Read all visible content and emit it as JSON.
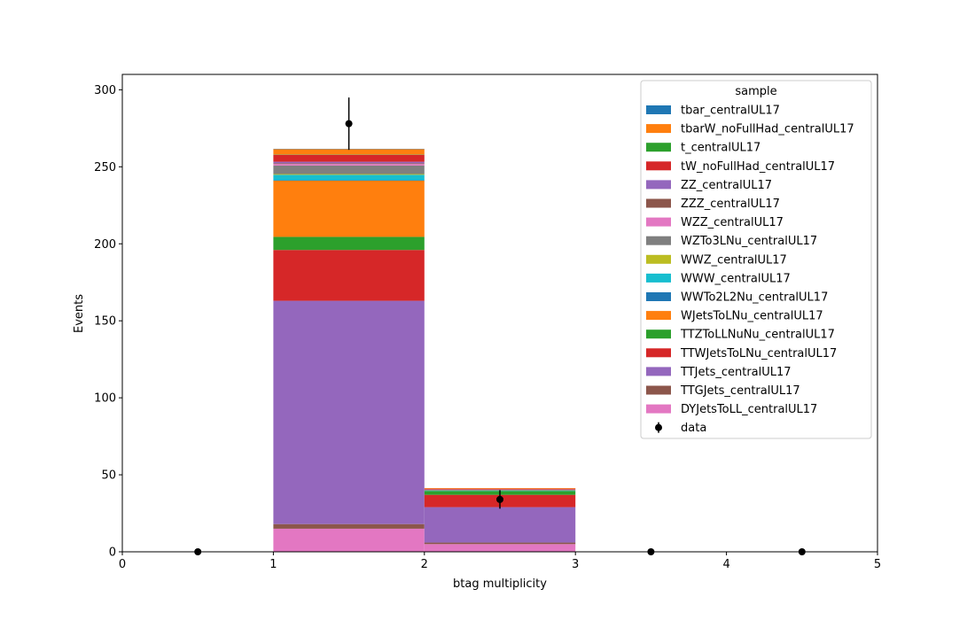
{
  "chart_data": {
    "type": "bar",
    "stacked": true,
    "histogram": true,
    "bin_edges": [
      0,
      1,
      2,
      3,
      4,
      5
    ],
    "xlabel": "btag multiplicity",
    "ylabel": "Events",
    "xlim": [
      0,
      5
    ],
    "ylim": [
      0,
      310
    ],
    "xticks": [
      0,
      1,
      2,
      3,
      4,
      5
    ],
    "yticks": [
      0,
      50,
      100,
      150,
      200,
      250,
      300
    ],
    "grid": false,
    "legend": {
      "title": "sample",
      "placement": "top-right"
    },
    "series": [
      {
        "name": "DYJetsToLL_centralUL17",
        "color": "#e377c2",
        "values": [
          0,
          15,
          5,
          0,
          0
        ]
      },
      {
        "name": "TTGJets_centralUL17",
        "color": "#8c564b",
        "values": [
          0,
          3,
          1,
          0,
          0
        ]
      },
      {
        "name": "TTJets_centralUL17",
        "color": "#9467bd",
        "values": [
          0,
          145,
          23,
          0,
          0
        ]
      },
      {
        "name": "TTWJetsToLNu_centralUL17",
        "color": "#d62728",
        "values": [
          0,
          33,
          8,
          0,
          0
        ]
      },
      {
        "name": "TTZToLLNuNu_centralUL17",
        "color": "#2ca02c",
        "values": [
          0,
          8.5,
          2.5,
          0,
          0
        ]
      },
      {
        "name": "WJetsToLNu_centralUL17",
        "color": "#ff7f0e",
        "values": [
          0,
          36.5,
          0,
          0,
          0
        ]
      },
      {
        "name": "WWTo2L2Nu_centralUL17",
        "color": "#1f77b4",
        "values": [
          0,
          0.3,
          0,
          0,
          0
        ]
      },
      {
        "name": "WWW_centralUL17",
        "color": "#17becf",
        "values": [
          0,
          3.5,
          0.2,
          0,
          0
        ]
      },
      {
        "name": "WWZ_centralUL17",
        "color": "#bcbd22",
        "values": [
          0,
          0.5,
          0.1,
          0,
          0
        ]
      },
      {
        "name": "WZTo3LNu_centralUL17",
        "color": "#7f7f7f",
        "values": [
          0,
          5.5,
          0.5,
          0,
          0
        ]
      },
      {
        "name": "WZZ_centralUL17",
        "color": "#e377c2",
        "values": [
          0,
          1,
          0.1,
          0,
          0
        ]
      },
      {
        "name": "ZZZ_centralUL17",
        "color": "#8c564b",
        "values": [
          0,
          0.5,
          0,
          0,
          0
        ]
      },
      {
        "name": "ZZ_centralUL17",
        "color": "#9467bd",
        "values": [
          0,
          1,
          0.1,
          0,
          0
        ]
      },
      {
        "name": "tW_noFullHad_centralUL17",
        "color": "#d62728",
        "values": [
          0,
          4.5,
          0.5,
          0,
          0
        ]
      },
      {
        "name": "t_centralUL17",
        "color": "#2ca02c",
        "values": [
          0,
          0.2,
          0,
          0,
          0
        ]
      },
      {
        "name": "tbarW_noFullHad_centralUL17",
        "color": "#ff7f0e",
        "values": [
          0,
          3.5,
          0.4,
          0,
          0
        ]
      },
      {
        "name": "tbar_centralUL17",
        "color": "#1f77b4",
        "values": [
          0,
          0.2,
          0,
          0,
          0
        ]
      }
    ],
    "data": {
      "name": "data",
      "color": "#000000",
      "x": [
        0.5,
        1.5,
        2.5,
        3.5,
        4.5
      ],
      "y": [
        0,
        278,
        34,
        0,
        0
      ],
      "yerr": [
        0,
        17,
        6,
        0,
        0
      ]
    }
  }
}
